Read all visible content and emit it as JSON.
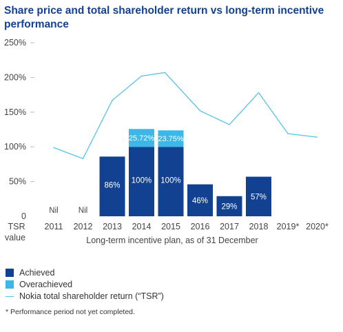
{
  "title": "Share price and total shareholder return vs long-term incentive performance",
  "colors": {
    "achieved": "#124191",
    "overachieved": "#3bb8e8",
    "tsr": "#56c2e8",
    "text": "#333333",
    "title": "#124191"
  },
  "chart_data": {
    "type": "bar",
    "title": "Share price and total shareholder return vs long-term incentive performance",
    "xlabel": "Long-term incentive plan, as of 31 December",
    "ylabel": "TSR value",
    "y_label_lines": [
      "TSR",
      "value"
    ],
    "ylim": [
      0,
      250
    ],
    "y_ticks": [
      0,
      50,
      100,
      150,
      200,
      250
    ],
    "y_tick_labels": [
      "0",
      "50%",
      "100%",
      "150%",
      "200%",
      "250%"
    ],
    "categories": [
      "2011",
      "2012",
      "2013",
      "2014",
      "2015",
      "2016",
      "2017",
      "2018",
      "2019*",
      "2020*"
    ],
    "series": [
      {
        "name": "Achieved",
        "kind": "bar",
        "values": [
          0,
          0,
          86,
          100,
          100,
          46,
          29,
          57,
          null,
          null
        ],
        "labels": [
          "Nil",
          "Nil",
          "86%",
          "100%",
          "100%",
          "46%",
          "29%",
          "57%",
          "",
          ""
        ]
      },
      {
        "name": "Overachieved",
        "kind": "bar-stacked",
        "values": [
          0,
          0,
          0,
          25.72,
          23.75,
          0,
          0,
          0,
          null,
          null
        ],
        "labels": [
          "",
          "",
          "",
          "25.72%",
          "23.75%",
          "",
          "",
          "",
          "",
          ""
        ]
      },
      {
        "name": "Nokia total shareholder return (“TSR”)",
        "kind": "line",
        "x": [
          0,
          1,
          2,
          3,
          3.8,
          5,
          6,
          7,
          8,
          9
        ],
        "values": [
          99,
          83,
          167,
          202,
          207,
          152,
          132,
          178,
          119,
          114
        ]
      }
    ],
    "grid": false,
    "legend": "bottom-left"
  },
  "legend": {
    "achieved": "Achieved",
    "overachieved": "Overachieved",
    "tsr": "Nokia total shareholder return (“TSR”)"
  },
  "footnote": "* Performance period not yet completed."
}
